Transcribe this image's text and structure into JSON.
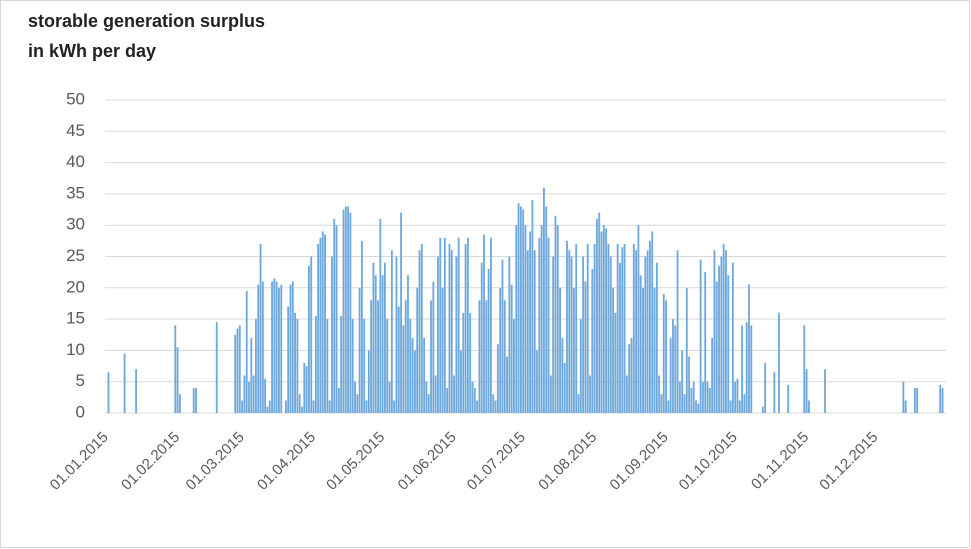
{
  "chart_data": {
    "type": "bar",
    "title": [
      "storable generation surplus",
      "in kWh per day"
    ],
    "color": "#6fa8dc",
    "ylim": [
      0,
      50
    ],
    "yticks": [
      0,
      5,
      10,
      15,
      20,
      25,
      30,
      35,
      40,
      45,
      50
    ],
    "grid": true,
    "categories": [
      "01.01.2015",
      null,
      null,
      null,
      null,
      null,
      null,
      null,
      null,
      null,
      null,
      null,
      null,
      null,
      null,
      null,
      null,
      null,
      null,
      null,
      null,
      null,
      null,
      null,
      null,
      null,
      null,
      null,
      null,
      null,
      null,
      "01.02.2015",
      null,
      null,
      null,
      null,
      null,
      null,
      null,
      null,
      null,
      null,
      null,
      null,
      null,
      null,
      null,
      null,
      null,
      null,
      null,
      null,
      null,
      null,
      null,
      null,
      null,
      null,
      null,
      "01.03.2015",
      null,
      null,
      null,
      null,
      null,
      null,
      null,
      null,
      null,
      null,
      null,
      null,
      null,
      null,
      null,
      null,
      null,
      null,
      null,
      null,
      null,
      null,
      null,
      null,
      null,
      null,
      null,
      null,
      null,
      null,
      "01.04.2015",
      null,
      null,
      null,
      null,
      null,
      null,
      null,
      null,
      null,
      null,
      null,
      null,
      null,
      null,
      null,
      null,
      null,
      null,
      null,
      null,
      null,
      null,
      null,
      null,
      null,
      null,
      null,
      null,
      null,
      "01.05.2015",
      null,
      null,
      null,
      null,
      null,
      null,
      null,
      null,
      null,
      null,
      null,
      null,
      null,
      null,
      null,
      null,
      null,
      null,
      null,
      null,
      null,
      null,
      null,
      null,
      null,
      null,
      null,
      null,
      null,
      null,
      "01.06.2015",
      null,
      null,
      null,
      null,
      null,
      null,
      null,
      null,
      null,
      null,
      null,
      null,
      null,
      null,
      null,
      null,
      null,
      null,
      null,
      null,
      null,
      null,
      null,
      null,
      null,
      null,
      null,
      null,
      null,
      "01.07.2015",
      null,
      null,
      null,
      null,
      null,
      null,
      null,
      null,
      null,
      null,
      null,
      null,
      null,
      null,
      null,
      null,
      null,
      null,
      null,
      null,
      null,
      null,
      null,
      null,
      null,
      null,
      null,
      null,
      null,
      null,
      "01.08.2015",
      null,
      null,
      null,
      null,
      null,
      null,
      null,
      null,
      null,
      null,
      null,
      null,
      null,
      null,
      null,
      null,
      null,
      null,
      null,
      null,
      null,
      null,
      null,
      null,
      null,
      null,
      null,
      null,
      null,
      null,
      "01.09.2015",
      null,
      null,
      null,
      null,
      null,
      null,
      null,
      null,
      null,
      null,
      null,
      null,
      null,
      null,
      null,
      null,
      null,
      null,
      null,
      null,
      null,
      null,
      null,
      null,
      null,
      null,
      null,
      null,
      null,
      "01.10.2015",
      null,
      null,
      null,
      null,
      null,
      null,
      null,
      null,
      null,
      null,
      null,
      null,
      null,
      null,
      null,
      null,
      null,
      null,
      null,
      null,
      null,
      null,
      null,
      null,
      null,
      null,
      null,
      null,
      null,
      null,
      "01.11.2015",
      null,
      null,
      null,
      null,
      null,
      null,
      null,
      null,
      null,
      null,
      null,
      null,
      null,
      null,
      null,
      null,
      null,
      null,
      null,
      null,
      null,
      null,
      null,
      null,
      null,
      null,
      null,
      null,
      null,
      "01.12.2015",
      null,
      null,
      null,
      null,
      null,
      null,
      null,
      null,
      null,
      null,
      null,
      null,
      null,
      null,
      null,
      null,
      null,
      null,
      null,
      null,
      null,
      null,
      null,
      null,
      null,
      null,
      null,
      null,
      null,
      null
    ],
    "values": [
      0,
      6.5,
      0,
      0,
      0,
      0,
      0,
      0,
      9.5,
      0,
      0,
      0,
      0,
      7,
      0,
      0,
      0,
      0,
      0,
      0,
      0,
      0,
      0,
      0,
      0,
      0,
      0,
      0,
      0,
      0,
      14,
      10.5,
      3,
      0,
      0,
      0,
      0,
      0,
      4,
      4,
      0,
      0,
      0,
      0,
      0,
      0,
      0,
      0,
      14.5,
      0,
      0,
      0,
      0,
      0,
      0,
      0,
      12.5,
      13.5,
      14,
      2,
      6,
      19.5,
      5,
      12,
      6,
      15,
      20.5,
      27,
      21,
      5.5,
      1,
      2,
      21,
      21.5,
      21,
      20,
      20.5,
      0,
      2,
      17,
      20.5,
      21,
      16,
      15,
      3,
      1,
      8,
      7.5,
      23.5,
      25,
      2,
      15.5,
      27,
      28,
      29,
      28.5,
      15,
      2,
      25,
      31,
      30,
      4,
      15.5,
      32.5,
      33,
      33,
      32,
      15,
      5,
      3,
      20,
      27.5,
      15,
      2,
      10,
      18,
      24,
      22,
      18,
      31,
      22,
      24,
      15,
      5,
      26,
      2,
      25,
      17,
      32,
      14,
      18,
      22,
      15,
      12,
      10,
      20,
      26,
      27,
      12,
      5,
      3,
      18,
      21,
      6,
      25,
      28,
      20,
      28,
      4,
      27,
      26,
      6,
      25,
      28,
      10,
      16,
      27,
      28,
      16,
      5,
      4,
      2,
      18,
      24,
      28.5,
      18,
      23,
      28,
      3,
      2,
      11,
      20,
      24.5,
      18,
      9,
      25,
      20.5,
      15,
      30,
      33.5,
      33,
      32.5,
      30,
      26,
      29,
      34,
      26,
      10,
      28,
      30,
      36,
      33,
      28,
      6,
      25,
      31.5,
      30,
      20,
      12,
      8,
      27.5,
      26,
      25,
      20,
      27,
      3,
      15,
      25,
      21,
      27,
      6,
      23,
      27,
      31,
      32,
      29,
      30,
      29.5,
      27,
      25,
      20,
      16,
      27,
      24,
      26.5,
      27,
      6,
      11,
      12,
      27,
      26,
      30,
      22,
      20,
      25,
      26,
      27.5,
      29,
      20,
      24,
      6,
      3,
      19,
      18,
      2,
      12,
      15,
      14,
      26,
      5,
      10,
      3,
      20,
      9,
      4,
      5,
      2,
      1.5,
      24.5,
      5,
      22.5,
      5,
      4,
      12,
      26,
      21,
      23.5,
      25,
      27,
      26,
      22,
      2,
      24,
      5,
      5.5,
      2,
      14,
      3,
      14.5,
      20.5,
      14,
      0,
      0,
      0,
      0,
      1,
      8,
      0,
      0,
      0,
      6.5,
      0,
      16,
      0,
      0,
      0,
      4.5,
      0,
      0,
      0,
      0,
      0,
      0,
      14,
      7,
      2,
      0,
      0,
      0,
      0,
      0,
      0,
      7,
      0,
      0,
      0,
      0,
      0,
      0,
      0,
      0,
      0,
      0,
      0,
      0,
      0,
      0,
      0,
      0,
      0,
      0,
      0,
      0,
      0,
      0,
      0,
      0,
      0,
      0,
      0,
      0,
      0,
      0,
      0,
      0,
      0,
      5,
      2,
      0,
      0,
      0,
      4,
      4,
      0,
      0,
      0,
      0,
      0,
      0,
      0,
      0,
      0,
      4.5,
      4,
      0
    ]
  }
}
